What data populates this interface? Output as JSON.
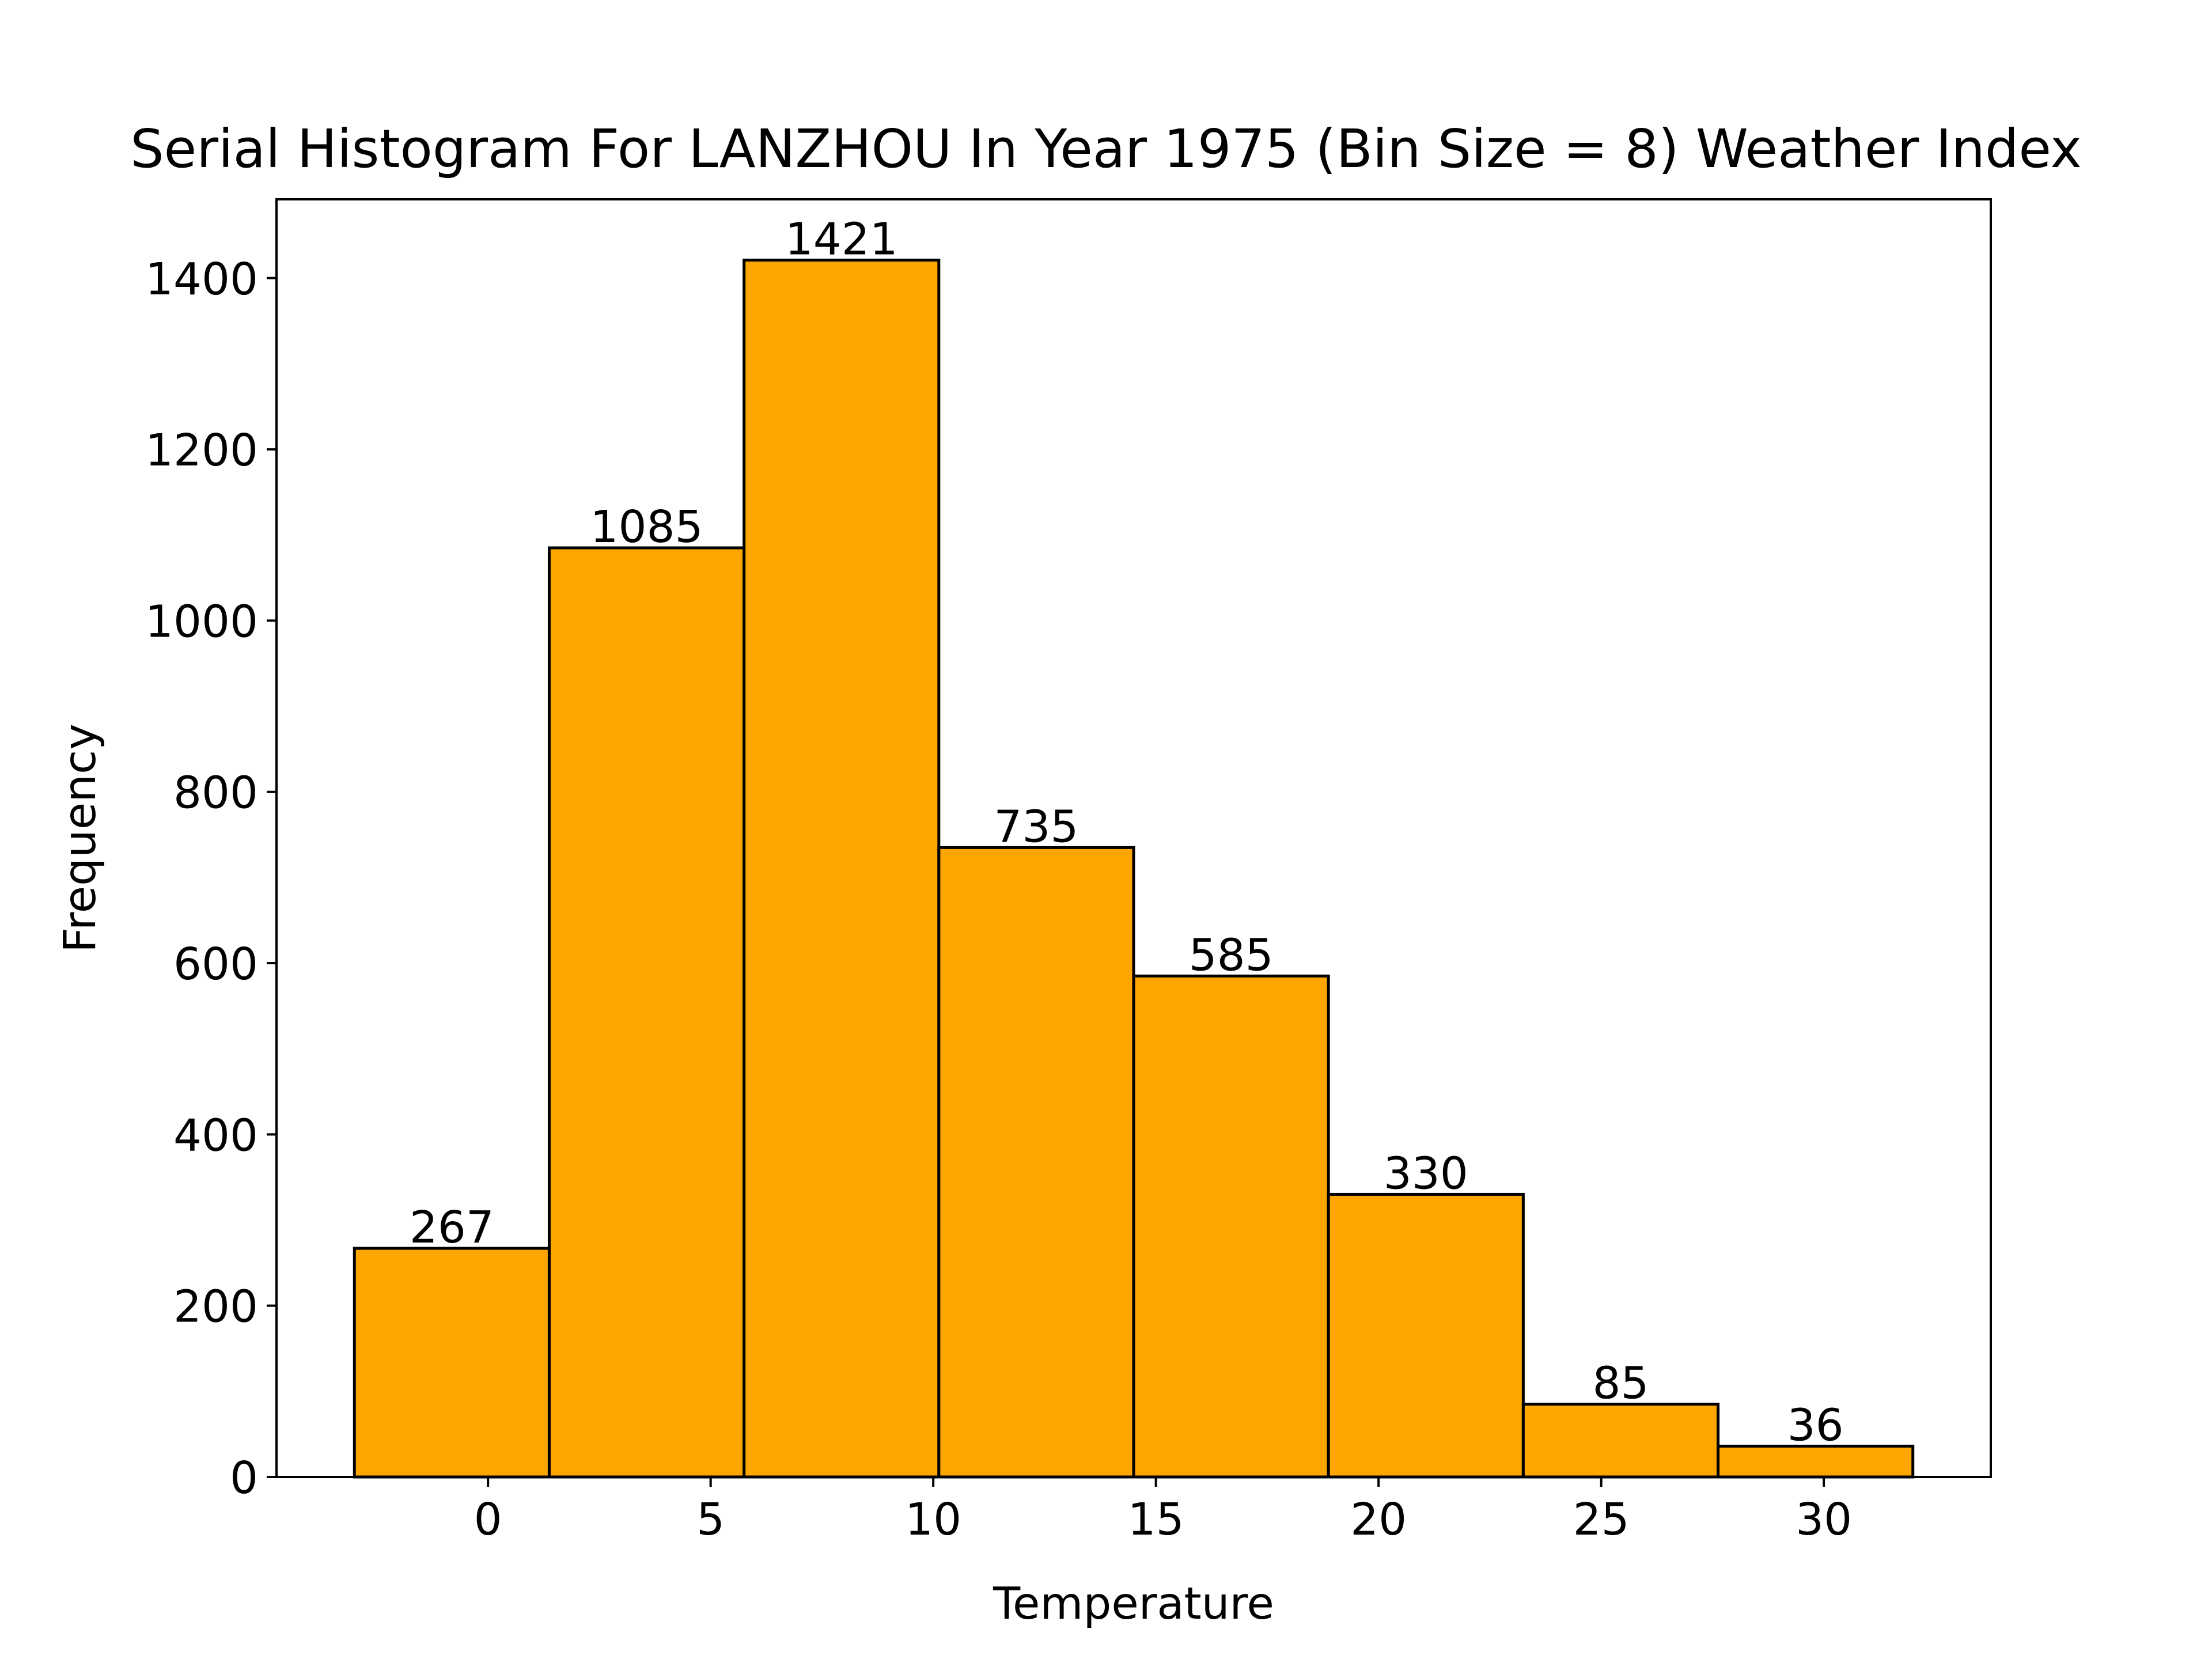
{
  "chart_data": {
    "type": "bar",
    "title": "Serial Histogram For LANZHOU In Year 1975 (Bin Size = 8) Weather Index",
    "xlabel": "Temperature",
    "ylabel": "Frequency",
    "bins": [
      {
        "start": -3.0,
        "end": 1.375,
        "value": 267
      },
      {
        "start": 1.375,
        "end": 5.75,
        "value": 1085
      },
      {
        "start": 5.75,
        "end": 10.125,
        "value": 1421
      },
      {
        "start": 10.125,
        "end": 14.5,
        "value": 735
      },
      {
        "start": 14.5,
        "end": 18.875,
        "value": 585
      },
      {
        "start": 18.875,
        "end": 23.25,
        "value": 330
      },
      {
        "start": 23.25,
        "end": 27.625,
        "value": 85
      },
      {
        "start": 27.625,
        "end": 32.0,
        "value": 36
      }
    ],
    "xlim": [
      -4.75,
      33.75
    ],
    "ylim": [
      0,
      1492
    ],
    "xticks": [
      0,
      5,
      10,
      15,
      20,
      25,
      30
    ],
    "yticks": [
      0,
      200,
      400,
      600,
      800,
      1000,
      1200,
      1400
    ],
    "bar_color": "#FFA500",
    "edge_color": "#000000",
    "grid": false,
    "legend": "none"
  }
}
